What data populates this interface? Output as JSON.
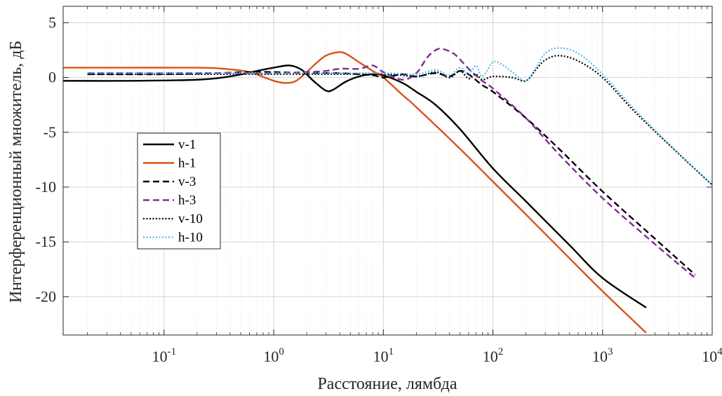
{
  "chart_data": {
    "type": "line",
    "title": "",
    "xlabel": "Расстояние, лямбда",
    "ylabel": "Интерференционный множитель, дБ",
    "xscale": "log",
    "xlim": [
      0.012,
      10000
    ],
    "ylim": [
      -23.5,
      6.5
    ],
    "grid": true,
    "legend_position": "left-center",
    "x_ticks": [
      {
        "value": 0.1,
        "base": "10",
        "exp": "-1"
      },
      {
        "value": 1,
        "base": "10",
        "exp": "0"
      },
      {
        "value": 10,
        "base": "10",
        "exp": "1"
      },
      {
        "value": 100,
        "base": "10",
        "exp": "2"
      },
      {
        "value": 1000,
        "base": "10",
        "exp": "3"
      },
      {
        "value": 10000,
        "base": "10",
        "exp": "4"
      }
    ],
    "y_ticks": [
      {
        "value": 5,
        "label": "5"
      },
      {
        "value": 0,
        "label": "0"
      },
      {
        "value": -5,
        "label": "-5"
      },
      {
        "value": -10,
        "label": "-10"
      },
      {
        "value": -15,
        "label": "-15"
      },
      {
        "value": -20,
        "label": "-20"
      }
    ],
    "series": [
      {
        "name": "v-1",
        "color": "#000000",
        "dash": "solid",
        "x": [
          0.012,
          0.05,
          0.2,
          0.4,
          0.7,
          1.0,
          1.4,
          1.8,
          2.3,
          3.0,
          3.5,
          4.5,
          6.0,
          8.0,
          10,
          15,
          20,
          30,
          50,
          100,
          200,
          500,
          1000,
          2500
        ],
        "y": [
          -0.3,
          -0.3,
          -0.2,
          0.1,
          0.6,
          0.9,
          1.1,
          0.7,
          -0.3,
          -1.2,
          -1.1,
          -0.4,
          0.1,
          0.3,
          0.2,
          -0.5,
          -1.3,
          -2.5,
          -4.7,
          -8.3,
          -11.3,
          -15.3,
          -18.3,
          -21.0
        ]
      },
      {
        "name": "h-1",
        "color": "#d95319",
        "dash": "solid",
        "x": [
          0.012,
          0.05,
          0.2,
          0.35,
          0.6,
          1.0,
          1.3,
          1.6,
          2.0,
          2.5,
          3.0,
          3.8,
          4.5,
          6.0,
          8.0,
          10,
          15,
          20,
          50,
          100,
          200,
          500,
          1000,
          2500
        ],
        "y": [
          0.9,
          0.9,
          0.9,
          0.8,
          0.5,
          -0.3,
          -0.5,
          -0.3,
          0.5,
          1.4,
          2.0,
          2.3,
          2.2,
          1.4,
          0.6,
          0.0,
          -1.6,
          -2.7,
          -6.5,
          -9.5,
          -12.5,
          -16.5,
          -19.5,
          -23.3
        ]
      },
      {
        "name": "v-3",
        "color": "#000000",
        "dash": "long",
        "x": [
          0.02,
          0.1,
          0.3,
          0.6,
          1.0,
          2.0,
          4.0,
          8.0,
          10,
          15,
          20,
          30,
          40,
          50,
          60,
          80,
          100,
          200,
          400,
          1000,
          3000,
          7000
        ],
        "y": [
          0.3,
          0.3,
          0.4,
          0.5,
          0.5,
          0.4,
          0.4,
          0.2,
          0.0,
          0.3,
          0.1,
          0.4,
          0.1,
          0.6,
          0.3,
          -0.7,
          -1.3,
          -3.7,
          -6.5,
          -10.4,
          -14.7,
          -18.0
        ]
      },
      {
        "name": "h-3",
        "color": "#7e2f8e",
        "dash": "long",
        "x": [
          0.02,
          0.1,
          0.3,
          0.6,
          1.0,
          2.0,
          3.0,
          4.0,
          6.0,
          8.0,
          10,
          15,
          20,
          25,
          30,
          35,
          45,
          60,
          80,
          100,
          200,
          400,
          1000,
          3000,
          7000
        ],
        "y": [
          0.4,
          0.4,
          0.4,
          0.4,
          0.4,
          0.5,
          0.6,
          0.8,
          0.8,
          1.1,
          0.5,
          -0.2,
          0.4,
          1.8,
          2.5,
          2.6,
          2.1,
          0.8,
          -0.3,
          -1.0,
          -3.7,
          -7.0,
          -11.0,
          -15.2,
          -18.3
        ]
      },
      {
        "name": "v-10",
        "color": "#000000",
        "dash": "dot",
        "x": [
          0.02,
          0.1,
          1.0,
          10,
          20,
          30,
          40,
          50,
          60,
          70,
          80,
          100,
          150,
          200,
          250,
          300,
          400,
          600,
          1000,
          2000,
          5000,
          10000
        ],
        "y": [
          0.3,
          0.3,
          0.3,
          0.3,
          0.1,
          0.5,
          0.0,
          0.6,
          -0.1,
          0.3,
          -0.2,
          0.1,
          0.0,
          -0.3,
          0.8,
          1.6,
          2.0,
          1.5,
          0.0,
          -3.2,
          -7.0,
          -9.8
        ]
      },
      {
        "name": "h-10",
        "color": "#4dbeee",
        "dash": "dot",
        "x": [
          0.02,
          0.1,
          1.0,
          10,
          20,
          30,
          40,
          50,
          60,
          70,
          80,
          100,
          120,
          150,
          200,
          250,
          300,
          400,
          600,
          1000,
          2000,
          5000,
          10000
        ],
        "y": [
          0.4,
          0.4,
          0.4,
          0.4,
          0.3,
          0.7,
          0.2,
          0.9,
          0.3,
          1.1,
          0.1,
          1.4,
          1.2,
          0.5,
          -0.3,
          1.0,
          2.2,
          2.7,
          2.2,
          0.3,
          -3.0,
          -7.0,
          -9.8
        ]
      }
    ]
  }
}
